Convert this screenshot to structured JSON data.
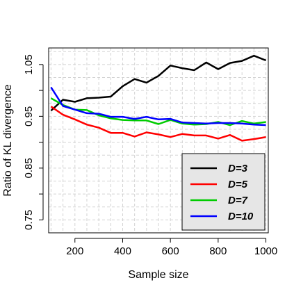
{
  "chart_data": {
    "type": "line",
    "xlabel": "Sample size",
    "ylabel": "Ratio of KL divergence",
    "xlim": [
      90,
      1010
    ],
    "ylim": [
      0.725,
      1.082
    ],
    "x_ticks": [
      200,
      400,
      600,
      800,
      1000
    ],
    "y_ticks": [
      0.75,
      0.8,
      0.85,
      0.9,
      0.95,
      1.0,
      1.05
    ],
    "y_tick_labels": [
      "0.75",
      "",
      "0.85",
      "",
      "0.95",
      "",
      "1.05"
    ],
    "grid": true,
    "legend_position": "bottom-right",
    "x": [
      100,
      150,
      200,
      250,
      300,
      350,
      400,
      450,
      500,
      550,
      600,
      650,
      700,
      750,
      800,
      850,
      900,
      950,
      1000
    ],
    "series": [
      {
        "name": "D=3",
        "color": "#000000",
        "values": [
          0.961,
          0.982,
          0.978,
          0.985,
          0.986,
          0.988,
          1.008,
          1.022,
          1.015,
          1.028,
          1.048,
          1.043,
          1.039,
          1.054,
          1.041,
          1.053,
          1.057,
          1.067,
          1.058
        ]
      },
      {
        "name": "D=5",
        "color": "#ff0000",
        "values": [
          0.969,
          0.953,
          0.944,
          0.934,
          0.928,
          0.918,
          0.918,
          0.911,
          0.919,
          0.915,
          0.91,
          0.916,
          0.913,
          0.913,
          0.907,
          0.914,
          0.903,
          0.906,
          0.91
        ]
      },
      {
        "name": "D=7",
        "color": "#00cc00",
        "values": [
          0.985,
          0.972,
          0.963,
          0.962,
          0.952,
          0.946,
          0.943,
          0.942,
          0.942,
          0.935,
          0.943,
          0.936,
          0.934,
          0.935,
          0.939,
          0.933,
          0.941,
          0.936,
          0.939
        ]
      },
      {
        "name": "D=10",
        "color": "#0000ff",
        "values": [
          1.006,
          0.97,
          0.963,
          0.956,
          0.955,
          0.949,
          0.949,
          0.945,
          0.949,
          0.944,
          0.945,
          0.938,
          0.937,
          0.936,
          0.937,
          0.937,
          0.936,
          0.934,
          0.933
        ]
      }
    ]
  }
}
